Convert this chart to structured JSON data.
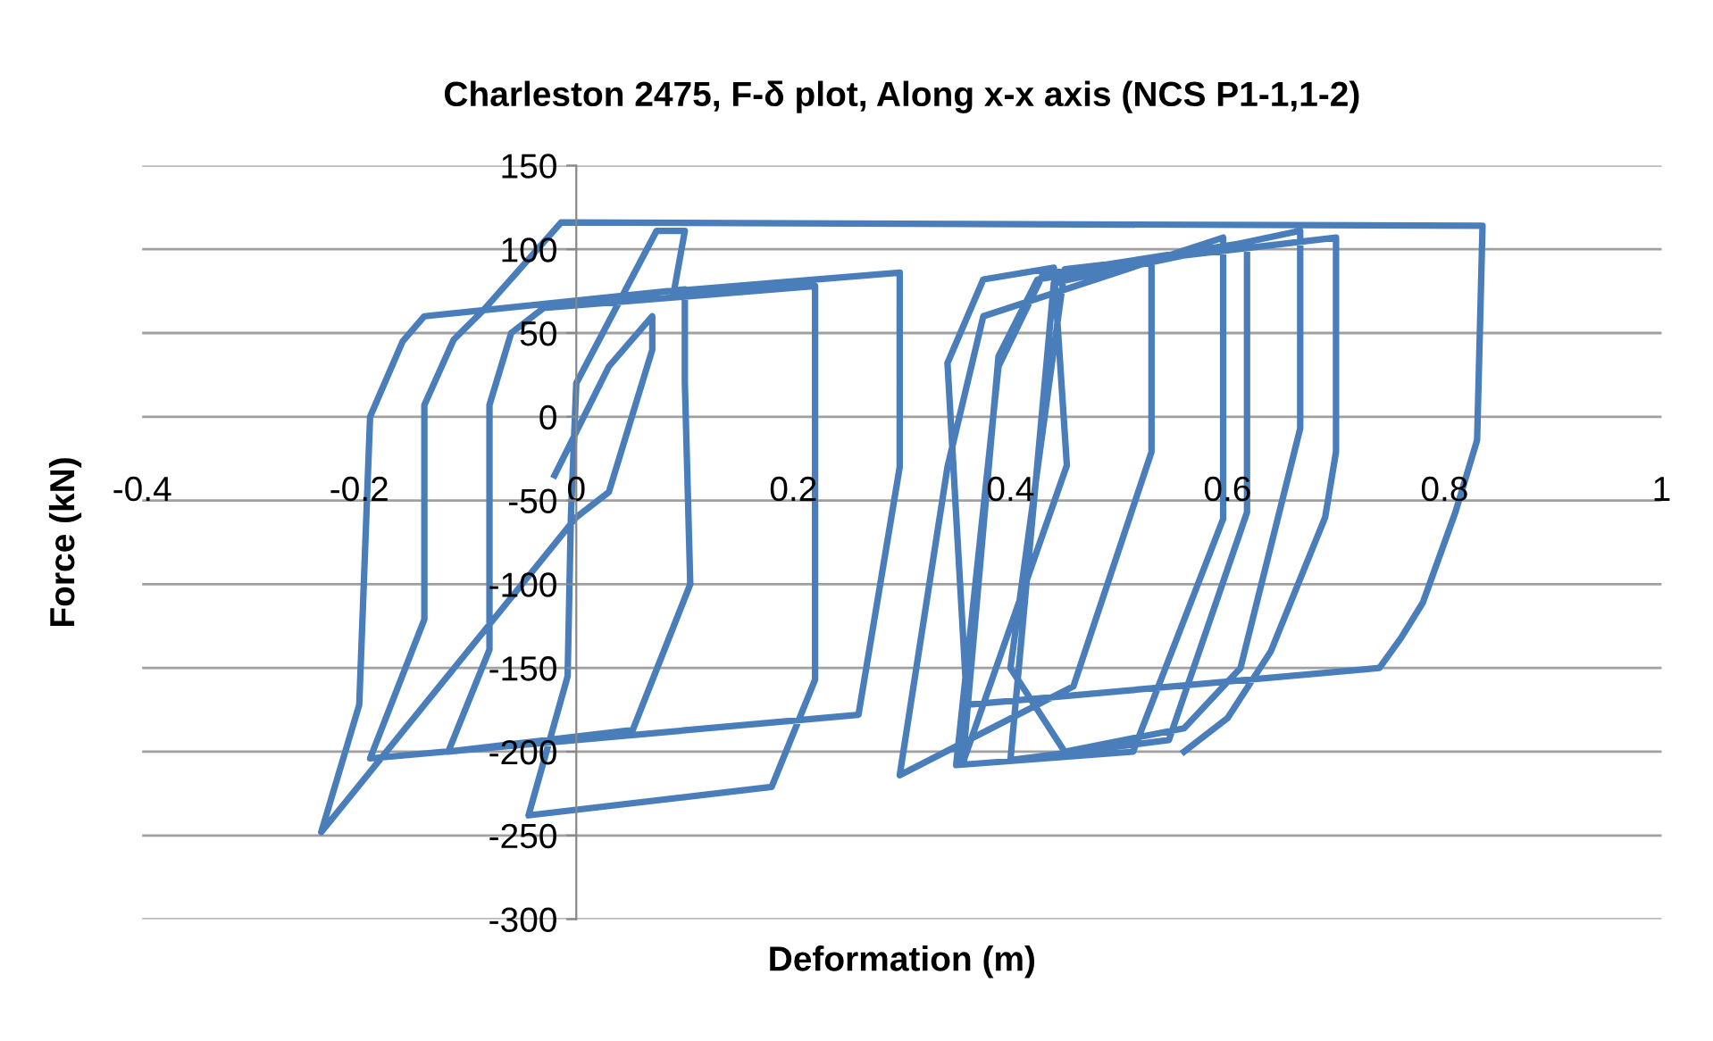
{
  "chart_data": {
    "type": "line",
    "title": "Charleston 2475, F-δ plot, Along x-x axis (NCS P1-1,1-2)",
    "xlabel": "Deformation (m)",
    "ylabel": "Force (kN)",
    "xlim": [
      -0.4,
      1
    ],
    "xticks": [
      -0.4,
      -0.2,
      0,
      0.2,
      0.4,
      0.6,
      0.8,
      1
    ],
    "ylim": [
      -300,
      150
    ],
    "yticks": [
      -300,
      -250,
      -200,
      -150,
      -100,
      -50,
      0,
      50,
      100,
      150
    ],
    "grid": "y",
    "legend": false,
    "marker": "none",
    "line_style": "solid",
    "series": [
      {
        "color": "#4a7ebb",
        "x": [
          -0.02,
          0.03,
          0.07,
          0.07,
          0.03,
          0.0,
          -0.235,
          -0.2,
          -0.19,
          -0.16,
          -0.14,
          0.1,
          0.1,
          0.105,
          0.052,
          -0.118,
          -0.08,
          -0.08,
          -0.06,
          -0.03,
          0.22,
          0.22,
          0.22,
          0.18,
          -0.044,
          -0.008,
          -0.005,
          0.0,
          0.074,
          0.1,
          0.09,
          0.298,
          0.298,
          0.26,
          -0.19,
          -0.14,
          -0.14,
          -0.113,
          -0.085,
          -0.014,
          0.835,
          0.83,
          0.81,
          0.78,
          0.76,
          0.74,
          0.36,
          0.342,
          0.375,
          0.44,
          0.452,
          0.356,
          0.389,
          0.425,
          0.53,
          0.53,
          0.458,
          0.298,
          0.342,
          0.375,
          0.596,
          0.596,
          0.513,
          0.35,
          0.389,
          0.43,
          0.618,
          0.618,
          0.546,
          0.4,
          0.44,
          0.667,
          0.667,
          0.612,
          0.56,
          0.45,
          0.4,
          0.45,
          0.7,
          0.7,
          0.69,
          0.64,
          0.6,
          0.56
        ],
        "values": [
          -35,
          30,
          60,
          40,
          -45,
          -60,
          -248,
          -172,
          0,
          45,
          60,
          76,
          21,
          -100,
          -187,
          -200,
          -139,
          7,
          50,
          65,
          78,
          0,
          -157,
          -221,
          -238,
          -155,
          -60,
          20,
          111,
          111,
          75,
          86,
          -30,
          -178,
          -204,
          -121,
          7,
          46,
          64,
          116,
          114,
          -14,
          -57,
          -111,
          -132,
          -150,
          -172,
          32,
          82,
          89,
          -29,
          -207,
          36,
          82,
          93,
          -21,
          -161,
          -214,
          -30,
          60,
          107,
          -61,
          -200,
          -208,
          30,
          85,
          104,
          -57,
          -193,
          -205,
          80,
          111,
          -7,
          -150,
          -186,
          -200,
          -150,
          88,
          107,
          -21,
          -60,
          -140,
          -180,
          -200
        ]
      }
    ]
  }
}
